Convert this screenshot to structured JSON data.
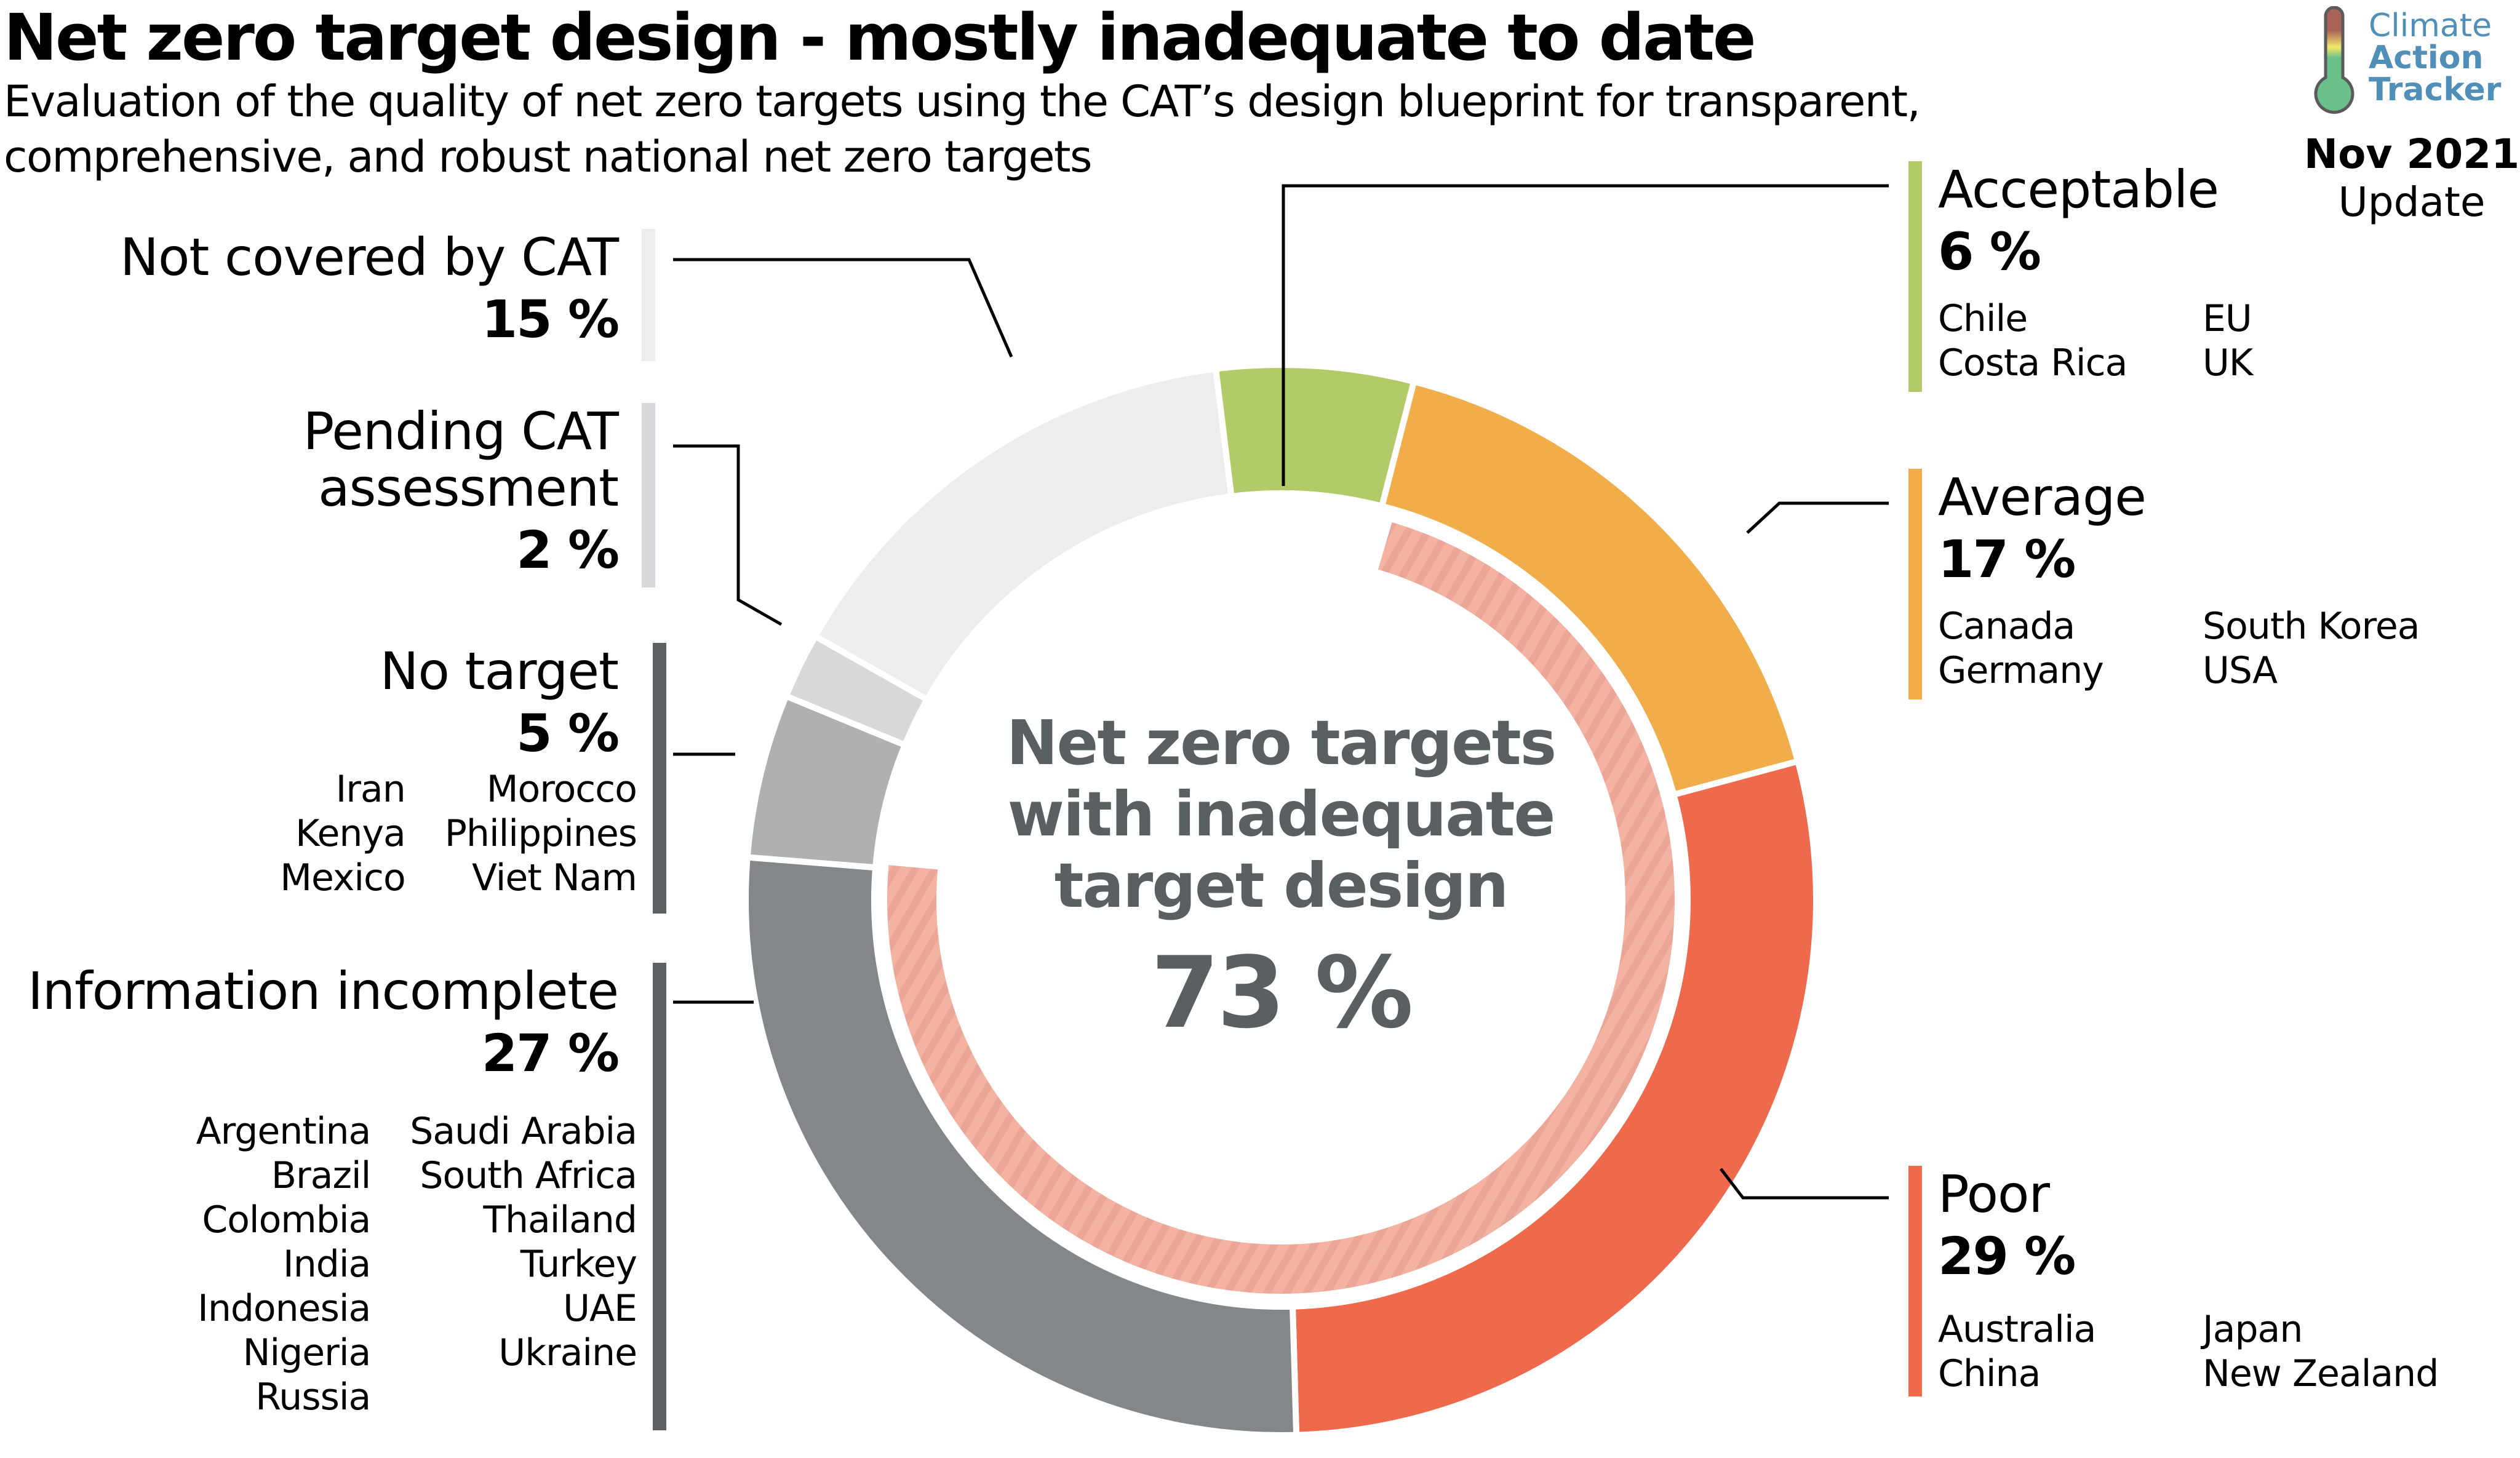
{
  "header": {
    "title": "Net zero target design - mostly inadequate to date",
    "subtitle": "Evaluation of the quality of net zero targets using the CAT’s design blueprint for transparent, comprehensive, and robust national net zero targets"
  },
  "logo": {
    "line1": "Climate",
    "line2": "Action",
    "line3": "Tracker",
    "icon": "thermometer-icon",
    "color": "#4f8fb8"
  },
  "update": {
    "date": "Nov 2021",
    "label": "Update"
  },
  "center": {
    "label_lines": [
      "Net zero targets",
      "with inadequate",
      "target design"
    ],
    "value": "73 %"
  },
  "chart_data": {
    "type": "pie",
    "title": "Net zero target design - mostly inadequate to date",
    "variant": "donut",
    "unit": "%",
    "categories": [
      "Acceptable",
      "Average",
      "Poor",
      "Information incomplete",
      "No target",
      "Pending CAT assessment",
      "Not covered by CAT"
    ],
    "values": [
      6,
      17,
      29,
      27,
      5,
      2,
      15
    ],
    "colors": [
      "#b2ca68",
      "#f0ad49",
      "#ef6a4c",
      "#83878a",
      "#aeb0b1",
      "#d6d8da",
      "#eceeee"
    ],
    "inadequate_highlight": {
      "label": "Net zero targets with inadequate target design",
      "value": 73,
      "includes": [
        "Average",
        "Poor",
        "Information incomplete"
      ],
      "color": "#f4b0a0"
    }
  },
  "legend": {
    "acceptable": {
      "name": "Acceptable",
      "pct": "6 %",
      "countries": [
        "Chile",
        "EU",
        "Costa Rica",
        "UK"
      ]
    },
    "average": {
      "name": "Average",
      "pct": "17 %",
      "countries": [
        "Canada",
        "South Korea",
        "Germany",
        "USA"
      ]
    },
    "poor": {
      "name": "Poor",
      "pct": "29 %",
      "countries": [
        "Australia",
        "Japan",
        "China",
        "New Zealand"
      ]
    },
    "not_covered": {
      "name": "Not covered by CAT",
      "pct": "15 %"
    },
    "pending": {
      "name_lines": [
        "Pending CAT",
        "assessment"
      ],
      "pct": "2 %"
    },
    "no_target": {
      "name": "No target",
      "pct": "5 %",
      "countries": [
        "Iran",
        "Morocco",
        "Kenya",
        "Philippines",
        "Mexico",
        "Viet Nam"
      ]
    },
    "info_incomplete": {
      "name": "Information incomplete",
      "pct": "27 %",
      "countries": [
        "Argentina",
        "Saudi Arabia",
        "Brazil",
        "South Africa",
        "Colombia",
        "Thailand",
        "India",
        "Turkey",
        "Indonesia",
        "UAE",
        "Nigeria",
        "Ukraine",
        "Russia",
        ""
      ]
    }
  }
}
